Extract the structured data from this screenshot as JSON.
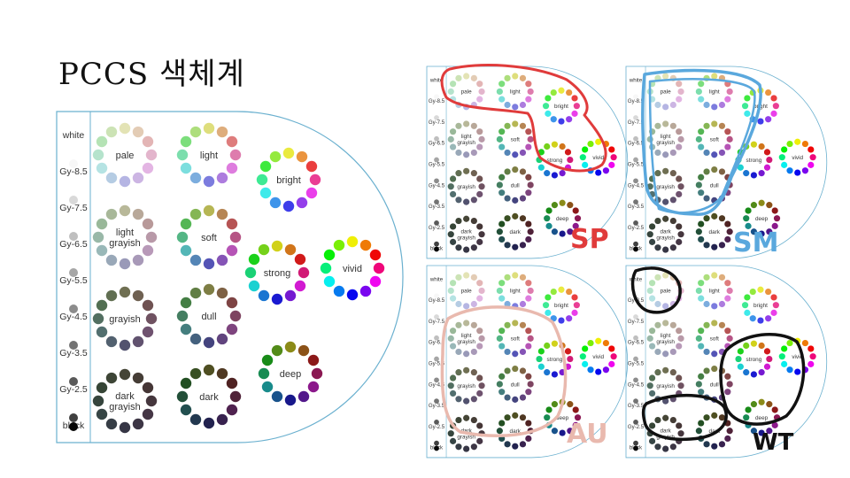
{
  "title": "PCCS 색체계",
  "gray_scale": [
    "white",
    "Gy-8.5",
    "Gy-7.5",
    "Gy-6.5",
    "Gy-5.5",
    "Gy-4.5",
    "Gy-3.5",
    "Gy-2.5",
    "black"
  ],
  "tones": {
    "pale": "pale",
    "light": "light",
    "bright": "bright",
    "light_grayish": "light\ngrayish",
    "soft": "soft",
    "strong": "strong",
    "vivid": "vivid",
    "grayish": "grayish",
    "dull": "dull",
    "deep": "deep",
    "dark_grayish": "dark\ngrayish",
    "dark": "dark"
  },
  "season_labels": {
    "sp": "SP",
    "sm": "SM",
    "au": "AU",
    "wt": "WT"
  },
  "colors": {
    "sp": "#e03b3b",
    "sm": "#5aa8dd",
    "au": "#e9b9ae",
    "wt": "#111111",
    "frame": "#6ab0cf"
  }
}
